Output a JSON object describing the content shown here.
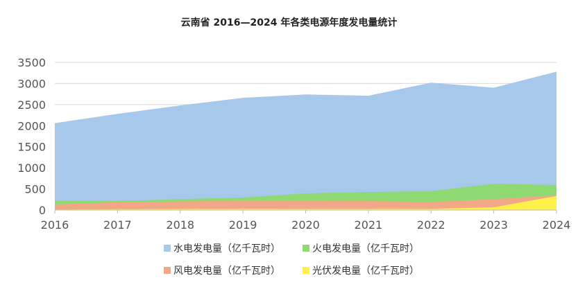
{
  "chart_data": {
    "type": "area",
    "title": "云南省 2016—2024 年各类电源年度发电量统计",
    "xlabel": "",
    "ylabel": "",
    "ylim": [
      0,
      3500
    ],
    "yticks": [
      "0",
      "500",
      "1000",
      "1500",
      "2000",
      "2500",
      "3000",
      "3500"
    ],
    "categories": [
      "2016",
      "2017",
      "2018",
      "2019",
      "2020",
      "2021",
      "2022",
      "2023",
      "2024"
    ],
    "grid": true,
    "legend_position": "bottom",
    "series": [
      {
        "name": "水电发电量（亿千瓦时）",
        "color": "#a6c8ea",
        "values": [
          2060,
          2280,
          2480,
          2660,
          2740,
          2710,
          3020,
          2900,
          3280
        ]
      },
      {
        "name": "火电发电量（亿千瓦时）",
        "color": "#8fd973",
        "values": [
          213,
          213,
          258,
          296,
          394,
          427,
          448,
          624,
          591
        ]
      },
      {
        "name": "风电发电量（亿千瓦时）",
        "color": "#f2a887",
        "values": [
          131,
          186,
          202,
          230,
          230,
          213,
          192,
          258,
          350
        ]
      },
      {
        "name": "光伏发电量（亿千瓦时）",
        "color": "#fff04a",
        "values": [
          10,
          20,
          25,
          28,
          30,
          30,
          30,
          66,
          333
        ]
      }
    ]
  }
}
